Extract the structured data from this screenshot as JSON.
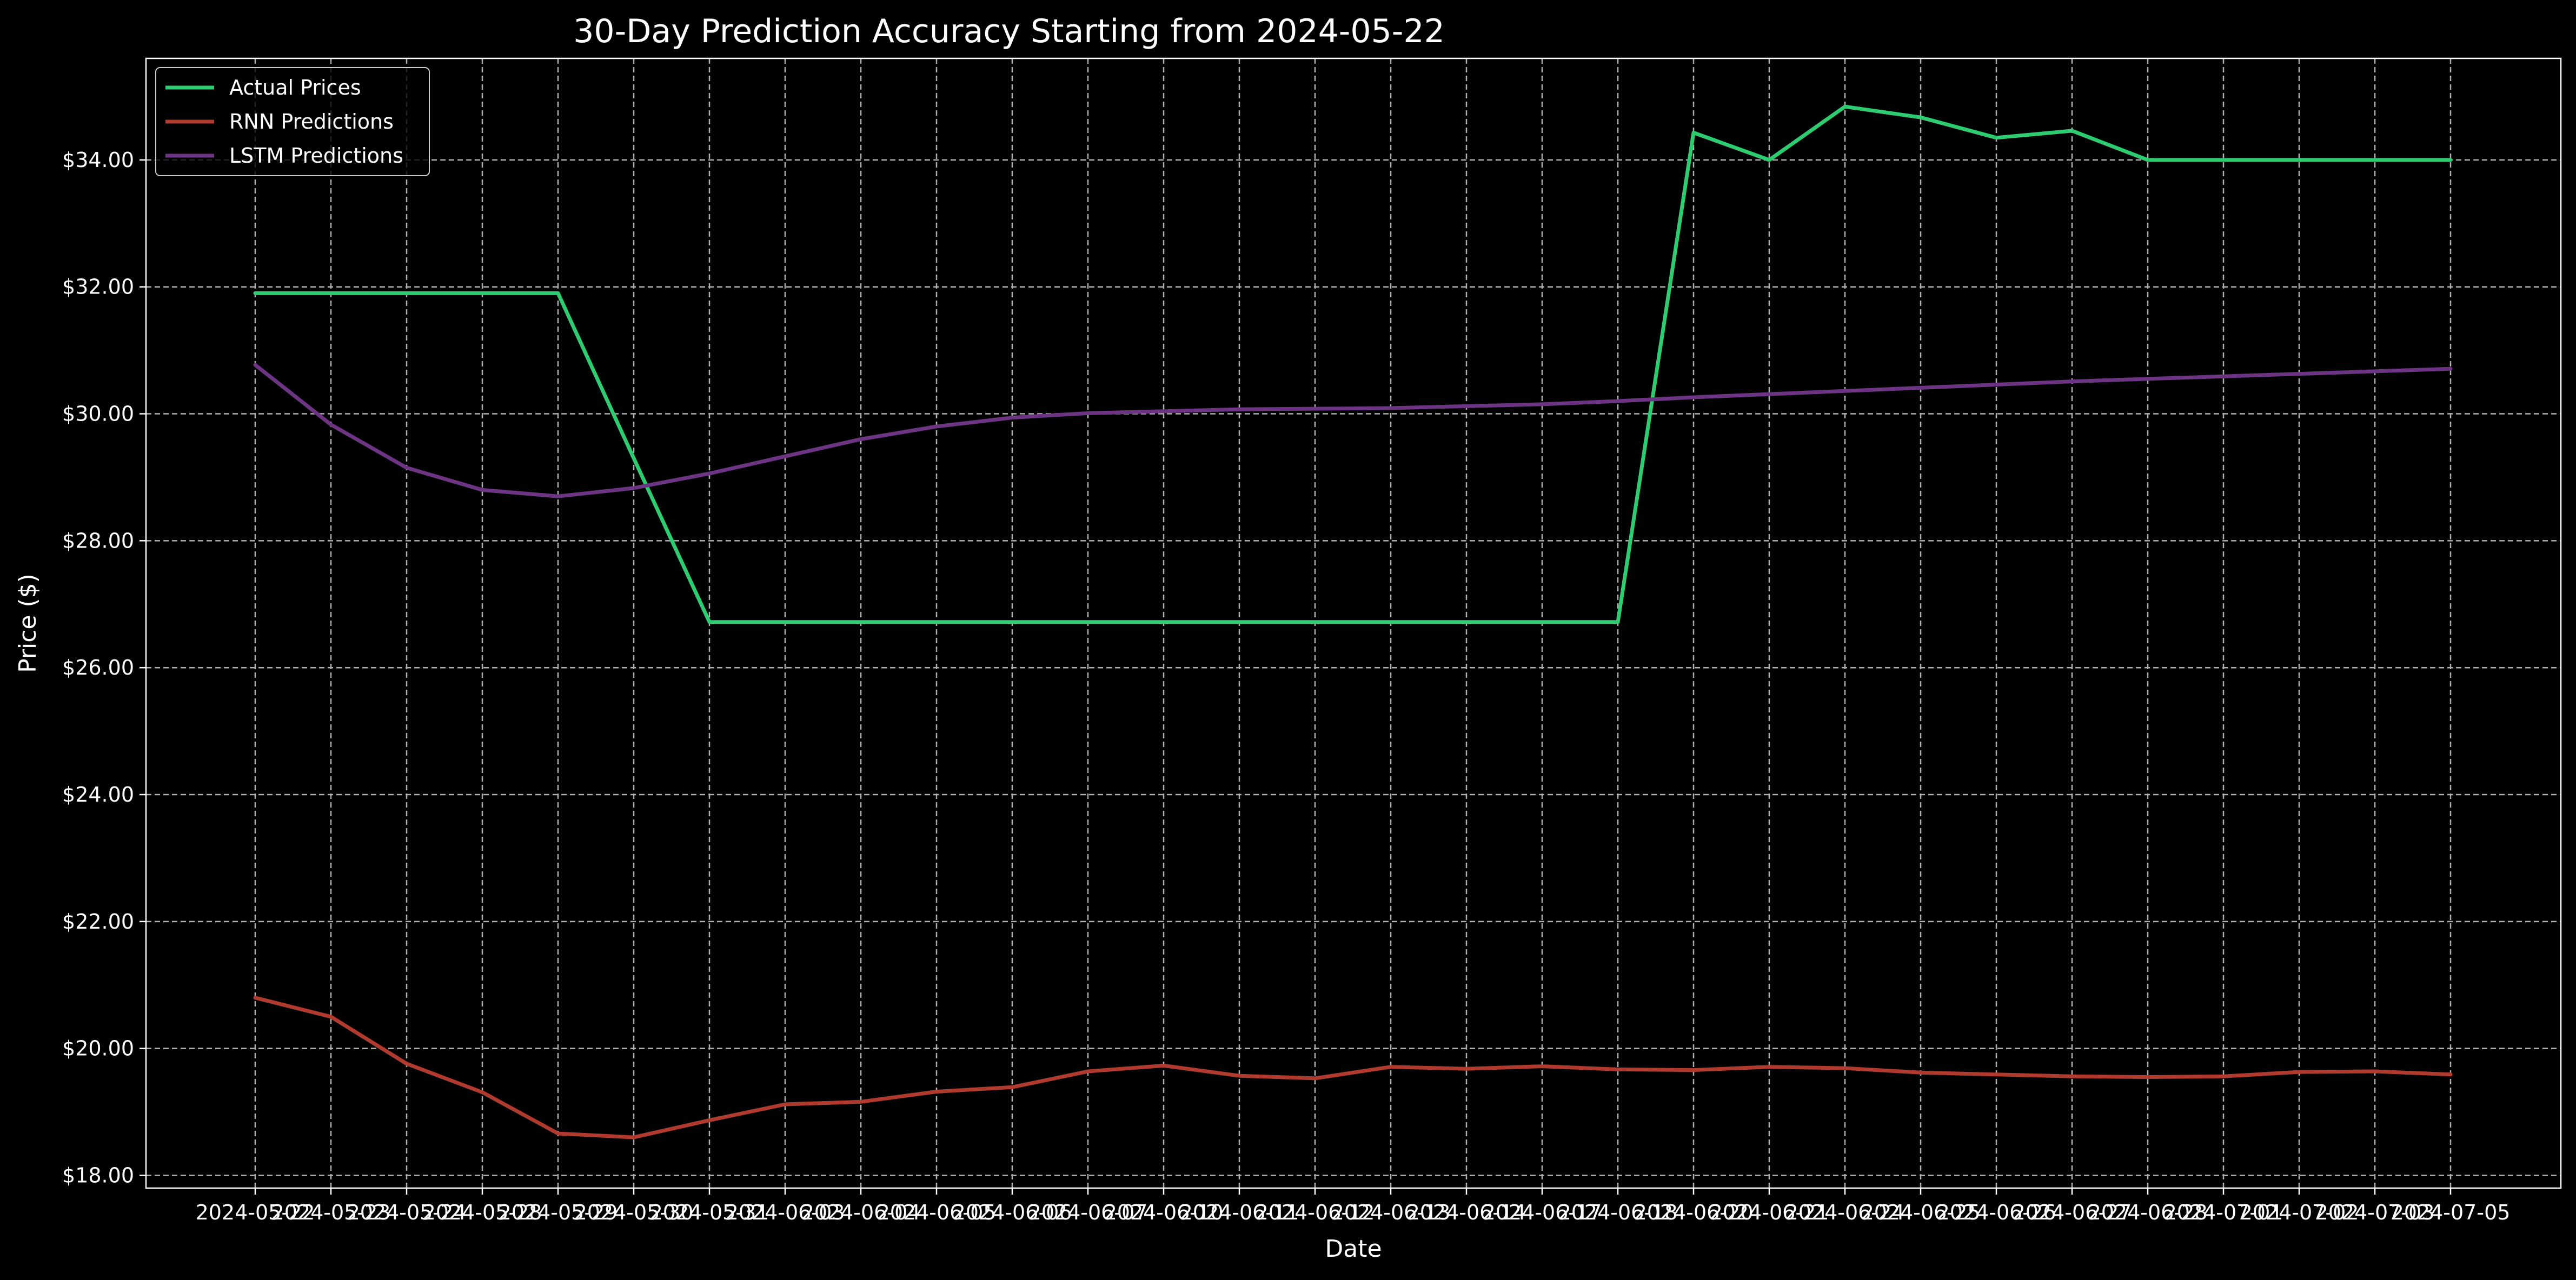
{
  "chart_data": {
    "type": "line",
    "title": "30-Day Prediction Accuracy Starting from 2024-05-22",
    "xlabel": "Date",
    "ylabel": "Price ($)",
    "ylim": [
      17.8,
      35.6
    ],
    "y_ticks": [
      "$18.00",
      "$20.00",
      "$22.00",
      "$24.00",
      "$26.00",
      "$28.00",
      "$30.00",
      "$32.00",
      "$34.00"
    ],
    "y_tick_values": [
      18,
      20,
      22,
      24,
      26,
      28,
      30,
      32,
      34
    ],
    "x": [
      "2024-05-22",
      "2024-05-23",
      "2024-05-24",
      "2024-05-28",
      "2024-05-29",
      "2024-05-30",
      "2024-05-31",
      "2024-06-03",
      "2024-06-04",
      "2024-06-05",
      "2024-06-06",
      "2024-06-07",
      "2024-06-10",
      "2024-06-11",
      "2024-06-12",
      "2024-06-13",
      "2024-06-14",
      "2024-06-17",
      "2024-06-18",
      "2024-06-20",
      "2024-06-21",
      "2024-06-24",
      "2024-06-25",
      "2024-06-26",
      "2024-06-27",
      "2024-06-28",
      "2024-07-01",
      "2024-07-02",
      "2024-07-03",
      "2024-07-05"
    ],
    "grid": true,
    "legend_position": "top-left",
    "series": [
      {
        "name": "Actual Prices",
        "color": "#2ecc71",
        "values": [
          31.9,
          31.9,
          31.9,
          31.9,
          31.9,
          29.3,
          26.72,
          26.72,
          26.72,
          26.72,
          26.72,
          26.72,
          26.72,
          26.72,
          26.72,
          26.72,
          26.72,
          26.72,
          26.72,
          34.43,
          34.0,
          34.84,
          34.67,
          34.35,
          34.46,
          34.0,
          34.0,
          34.0,
          34.0,
          34.0
        ]
      },
      {
        "name": "RNN Predictions",
        "color": "#b03a2e",
        "values": [
          20.8,
          20.5,
          19.76,
          19.31,
          18.66,
          18.6,
          18.87,
          19.12,
          19.16,
          19.32,
          19.39,
          19.64,
          19.73,
          19.57,
          19.53,
          19.71,
          19.68,
          19.72,
          19.67,
          19.66,
          19.71,
          19.69,
          19.62,
          19.59,
          19.56,
          19.55,
          19.56,
          19.63,
          19.64,
          19.59
        ]
      },
      {
        "name": "LSTM Predictions",
        "color": "#6c3483",
        "values": [
          30.77,
          29.83,
          29.15,
          28.8,
          28.7,
          28.83,
          29.06,
          29.33,
          29.6,
          29.8,
          29.94,
          30.01,
          30.04,
          30.07,
          30.08,
          30.09,
          30.12,
          30.15,
          30.2,
          30.26,
          30.31,
          30.36,
          30.41,
          30.46,
          30.51,
          30.55,
          30.59,
          30.63,
          30.67,
          30.71
        ]
      }
    ]
  }
}
